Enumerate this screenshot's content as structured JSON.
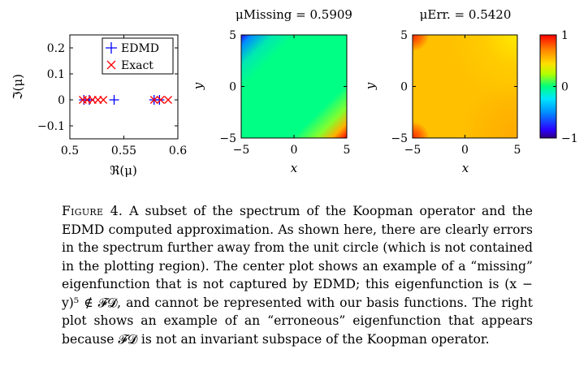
{
  "chart_data": [
    {
      "type": "scatter",
      "xlabel": "ℜ(μ)",
      "ylabel": "ℑ(μ)",
      "xlim": [
        0.5,
        0.6
      ],
      "ylim": [
        -0.15,
        0.25
      ],
      "xticks": [
        "0.5",
        "0.55",
        "0.6"
      ],
      "yticks": [
        "0.2",
        "0.1",
        "0",
        "−0.1"
      ],
      "grid": false,
      "legend_position": "top-right",
      "series": [
        {
          "name": "EDMD",
          "color": "#0000ff",
          "marker": "plus",
          "x": [
            0.513,
            0.518,
            0.541,
            0.578,
            0.583
          ],
          "y": [
            0,
            0,
            0,
            0,
            0
          ]
        },
        {
          "name": "Exact",
          "color": "#ff0000",
          "marker": "x",
          "x": [
            0.512,
            0.516,
            0.521,
            0.526,
            0.531,
            0.578,
            0.584,
            0.591
          ],
          "y": [
            0,
            0,
            0,
            0,
            0,
            0,
            0,
            0
          ]
        }
      ]
    },
    {
      "type": "heatmap",
      "title": "μMissing = 0.5909",
      "xlabel": "x",
      "ylabel": "y",
      "xlim": [
        -5,
        5
      ],
      "ylim": [
        -5,
        5
      ],
      "xticks": [
        "−5",
        "0",
        "5"
      ],
      "yticks": [
        "5",
        "0",
        "−5"
      ]
    },
    {
      "type": "heatmap",
      "title": "μErr. = 0.5420",
      "xlabel": "x",
      "ylabel": "y",
      "xlim": [
        -5,
        5
      ],
      "ylim": [
        -5,
        5
      ],
      "xticks": [
        "−5",
        "0",
        "5"
      ],
      "yticks": [
        "5",
        "0",
        "−5"
      ]
    },
    {
      "type": "colorbar",
      "range": [
        -1,
        1
      ],
      "ticks": [
        "1",
        "0",
        "−1"
      ]
    }
  ],
  "caption": {
    "label": "Figure 4.",
    "text": "A subset of the spectrum of the Koopman operator and the EDMD computed approximation. As shown here, there are clearly errors in the spectrum further away from the unit circle (which is not contained in the plotting region). The center plot shows an example of a “missing” eigenfunction that is not cap­tured by EDMD; this eigenfunction is (x − y)⁵ ∉ 𝓕𝓓, and cannot be represented with our basis functions. The right plot shows an example of an “erroneous” eigenfunction that appears because 𝓕𝓓 is not an invariant subspace of the Koopman operator."
  }
}
